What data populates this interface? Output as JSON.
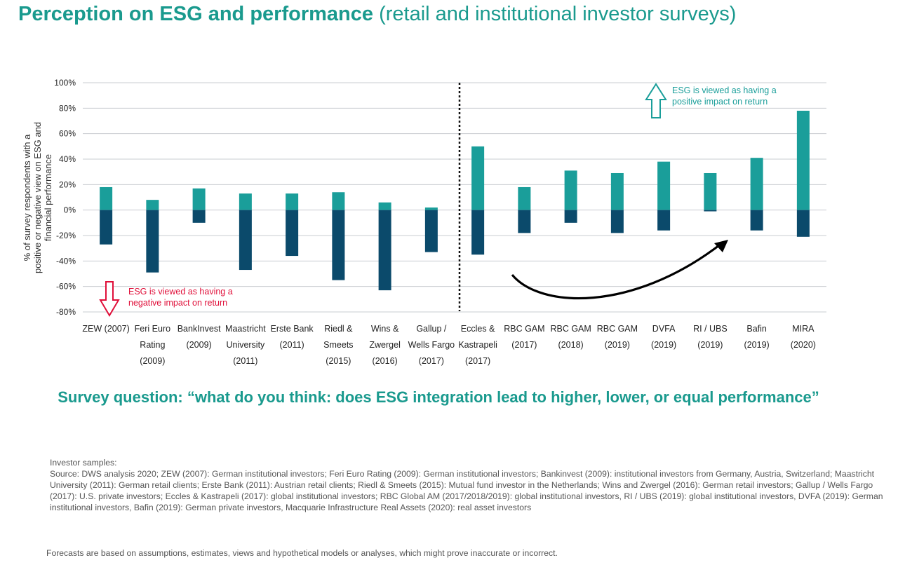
{
  "header": {
    "title_main": "Perception on ESG and performance",
    "title_sub": "(retail and institutional investor surveys)"
  },
  "colors": {
    "positive": "#1a9e9a",
    "negative": "#0b4a6b",
    "title": "#1a9a8e",
    "negative_annotation": "#e0103a"
  },
  "chart_data": {
    "type": "bar",
    "ylabel": "% of survey respondents with a positive or negative view on ESG and financial performance",
    "ylim": [
      -80,
      100
    ],
    "yticks": [
      "-80%",
      "-60%",
      "-40%",
      "-20%",
      "0%",
      "20%",
      "40%",
      "60%",
      "80%",
      "100%"
    ],
    "grid": true,
    "categories": [
      [
        "ZEW (2007)"
      ],
      [
        "Feri Euro",
        "Rating",
        "(2009)"
      ],
      [
        "BankInvest",
        "(2009)"
      ],
      [
        "Maastricht",
        "University",
        "(2011)"
      ],
      [
        "Erste Bank",
        "(2011)"
      ],
      [
        "Riedl &",
        "Smeets",
        "(2015)"
      ],
      [
        "Wins &",
        "Zwergel",
        "(2016)"
      ],
      [
        "Gallup /",
        "Wells Fargo",
        "(2017)"
      ],
      [
        "Eccles &",
        "Kastrapeli",
        "(2017)"
      ],
      [
        "RBC GAM",
        "(2017)"
      ],
      [
        "RBC  GAM",
        "(2018)"
      ],
      [
        "RBC GAM",
        "(2019)"
      ],
      [
        "DVFA",
        "(2019)"
      ],
      [
        "RI / UBS",
        "(2019)"
      ],
      [
        "Bafin",
        "(2019)"
      ],
      [
        "MIRA",
        "(2020)"
      ]
    ],
    "series": [
      {
        "values": [
          18,
          8,
          17,
          13,
          13,
          14,
          6,
          2,
          50,
          18,
          31,
          29,
          38,
          29,
          41,
          78
        ]
      },
      {
        "values": [
          -27,
          -49,
          -10,
          -47,
          -36,
          -55,
          -63,
          -33,
          -35,
          -18,
          -10,
          -18,
          -16,
          -1,
          -16,
          -21
        ]
      }
    ],
    "annotations": {
      "positive": [
        "ESG is viewed as having a",
        "positive impact on return"
      ],
      "negative": [
        "ESG is viewed as having a",
        "negative impact on return"
      ]
    }
  },
  "question": "Survey question: “what do you think: does ESG integration lead to higher, lower, or equal performance”",
  "notes": {
    "heading": "Investor samples:",
    "source": "Source: DWS analysis 2020; ZEW (2007): German institutional investors; Feri Euro Rating (2009): German institutional investors; Bankinvest (2009): institutional investors from Germany, Austria, Switzerland; Maastricht University (2011): German retail clients; Erste Bank (2011): Austrian retail clients; Riedl & Smeets (2015): Mutual fund investor in the Netherlands; Wins and Zwergel (2016): German retail investors; Gallup / Wells Fargo (2017): U.S. private investors; Eccles & Kastrapeli (2017): global institutional investors; RBC Global AM (2017/2018/2019): global institutional investors, RI / UBS (2019): global institutional investors, DVFA (2019): German institutional investors, Bafin (2019): German private investors, Macquarie Infrastructure Real Assets (2020): real asset investors"
  },
  "disclaimer": "Forecasts are based on assumptions, estimates, views and hypothetical models or analyses, which might prove inaccurate or incorrect."
}
